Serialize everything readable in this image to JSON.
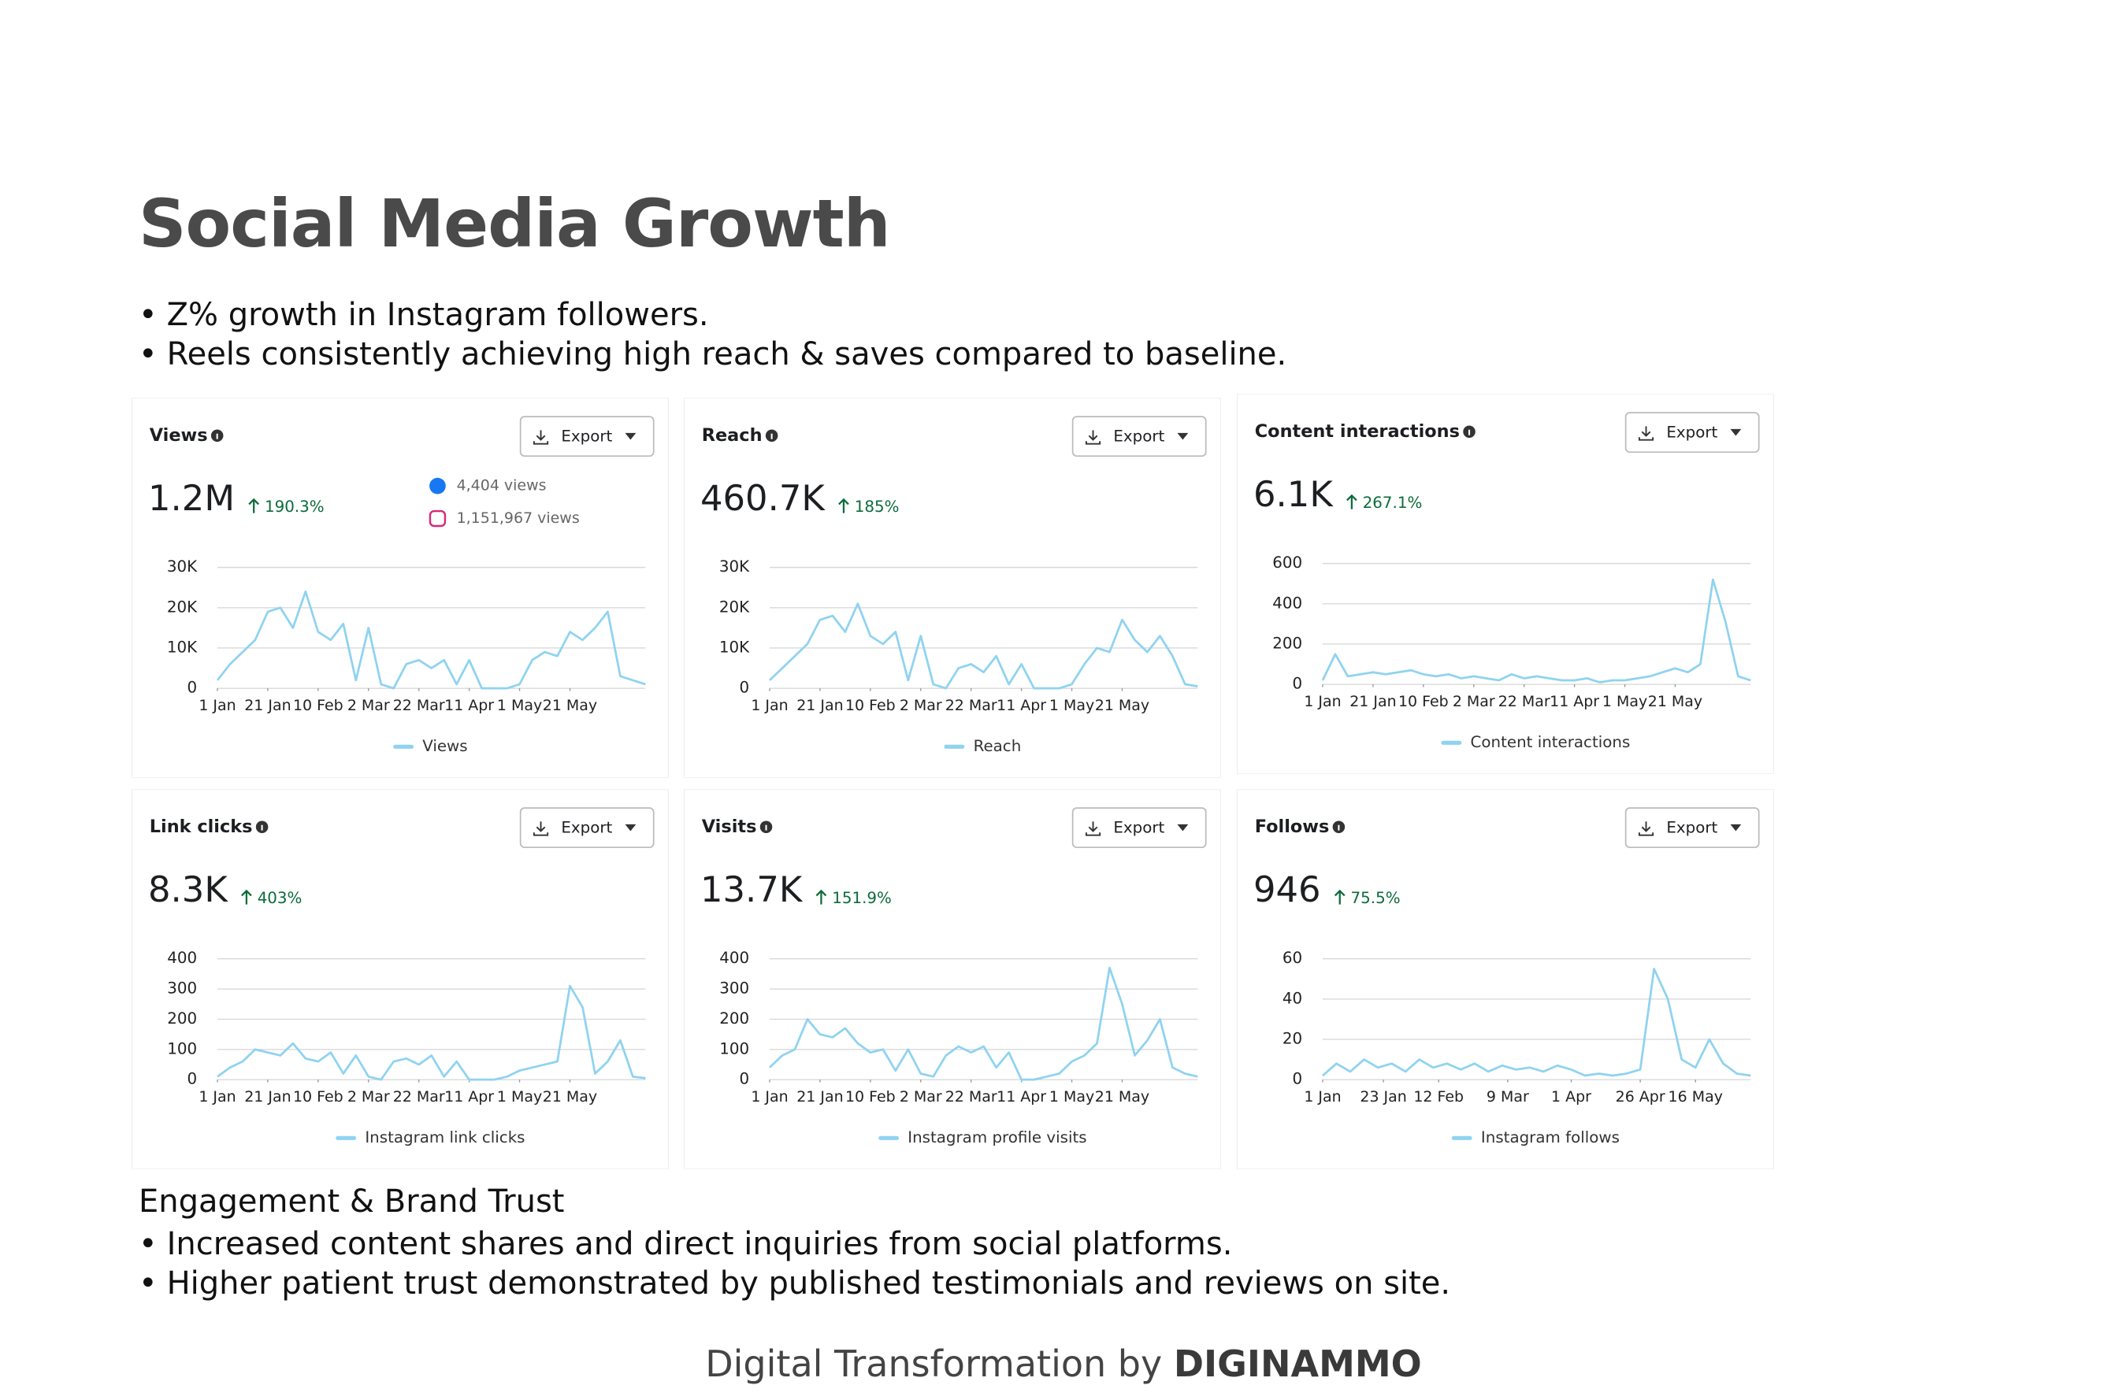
{
  "title": "Social Media Growth",
  "bullets": [
    "Z% growth in Instagram followers.",
    "Reels consistently achieving high reach & saves compared to baseline."
  ],
  "section": {
    "heading": "Engagement & Brand Trust",
    "bullets": [
      "Increased content shares and direct inquiries from social platforms.",
      "Higher patient trust demonstrated by published testimonials and reviews on site."
    ]
  },
  "footer": {
    "text": "Digital Transformation by",
    "brand": "DIGINAMMO"
  },
  "chart_data": [
    {
      "type": "line",
      "title": "Views",
      "button": "Export",
      "total": "1.2M",
      "change": "190.3%",
      "breakdown": [
        "4,404 views",
        "1,151,967 views"
      ],
      "x": [
        0,
        5,
        10,
        15,
        20,
        25,
        30,
        35,
        40,
        45,
        50,
        55,
        60,
        65,
        70,
        75,
        80,
        85,
        90,
        95,
        100,
        105,
        110,
        115,
        120,
        125,
        130,
        135,
        140,
        145,
        150,
        155,
        160,
        165,
        170
      ],
      "xlim": [
        0,
        170
      ],
      "xticks": [
        {
          "value": 0,
          "label": "1 Jan"
        },
        {
          "value": 20,
          "label": "21 Jan"
        },
        {
          "value": 40,
          "label": "10 Feb"
        },
        {
          "value": 60,
          "label": "2 Mar"
        },
        {
          "value": 80,
          "label": "22 Mar"
        },
        {
          "value": 100,
          "label": "11 Apr"
        },
        {
          "value": 120,
          "label": "1 May"
        },
        {
          "value": 140,
          "label": "21 May"
        }
      ],
      "ylim": [
        0,
        30000
      ],
      "yticks": [
        0,
        {
          "value": 10000,
          "label": "10K"
        },
        {
          "value": 20000,
          "label": "20K"
        },
        {
          "value": 30000,
          "label": "30K"
        }
      ],
      "series": [
        {
          "name": "Views",
          "color": "#8fd3f0",
          "values": [
            2000,
            6000,
            9000,
            12000,
            19000,
            20000,
            15000,
            24000,
            14000,
            12000,
            16000,
            2000,
            15000,
            1000,
            0,
            6000,
            7000,
            5000,
            7000,
            1000,
            7000,
            0,
            0,
            0,
            1000,
            7000,
            9000,
            8000,
            14000,
            12000,
            15000,
            19000,
            3000,
            2000,
            1000
          ]
        }
      ]
    },
    {
      "type": "line",
      "title": "Reach",
      "button": "Export",
      "total": "460.7K",
      "change": "185%",
      "x": [
        0,
        5,
        10,
        15,
        20,
        25,
        30,
        35,
        40,
        45,
        50,
        55,
        60,
        65,
        70,
        75,
        80,
        85,
        90,
        95,
        100,
        105,
        110,
        115,
        120,
        125,
        130,
        135,
        140,
        145,
        150,
        155,
        160,
        165,
        170
      ],
      "xlim": [
        0,
        170
      ],
      "xticks": [
        {
          "value": 0,
          "label": "1 Jan"
        },
        {
          "value": 20,
          "label": "21 Jan"
        },
        {
          "value": 40,
          "label": "10 Feb"
        },
        {
          "value": 60,
          "label": "2 Mar"
        },
        {
          "value": 80,
          "label": "22 Mar"
        },
        {
          "value": 100,
          "label": "11 Apr"
        },
        {
          "value": 120,
          "label": "1 May"
        },
        {
          "value": 140,
          "label": "21 May"
        }
      ],
      "ylim": [
        0,
        30000
      ],
      "yticks": [
        0,
        {
          "value": 10000,
          "label": "10K"
        },
        {
          "value": 20000,
          "label": "20K"
        },
        {
          "value": 30000,
          "label": "30K"
        }
      ],
      "series": [
        {
          "name": "Reach",
          "color": "#8fd3f0",
          "values": [
            2000,
            5000,
            8000,
            11000,
            17000,
            18000,
            14000,
            21000,
            13000,
            11000,
            14000,
            2000,
            13000,
            1000,
            0,
            5000,
            6000,
            4000,
            8000,
            1000,
            6000,
            0,
            0,
            0,
            1000,
            6000,
            10000,
            9000,
            17000,
            12000,
            9000,
            13000,
            8000,
            1000,
            500
          ]
        }
      ]
    },
    {
      "type": "line",
      "title": "Content interactions",
      "button": "Export",
      "total": "6.1K",
      "change": "267.1%",
      "x": [
        0,
        5,
        10,
        15,
        20,
        25,
        30,
        35,
        40,
        45,
        50,
        55,
        60,
        65,
        70,
        75,
        80,
        85,
        90,
        95,
        100,
        105,
        110,
        115,
        120,
        125,
        130,
        135,
        140,
        145,
        150,
        155,
        160,
        165,
        170
      ],
      "xlim": [
        0,
        170
      ],
      "xticks": [
        {
          "value": 0,
          "label": "1 Jan"
        },
        {
          "value": 20,
          "label": "21 Jan"
        },
        {
          "value": 40,
          "label": "10 Feb"
        },
        {
          "value": 60,
          "label": "2 Mar"
        },
        {
          "value": 80,
          "label": "22 Mar"
        },
        {
          "value": 100,
          "label": "11 Apr"
        },
        {
          "value": 120,
          "label": "1 May"
        },
        {
          "value": 140,
          "label": "21 May"
        }
      ],
      "ylim": [
        0,
        600
      ],
      "yticks": [
        0,
        200,
        400,
        600
      ],
      "series": [
        {
          "name": "Content interactions",
          "color": "#8fd3f0",
          "values": [
            20,
            150,
            40,
            50,
            60,
            50,
            60,
            70,
            50,
            40,
            50,
            30,
            40,
            30,
            20,
            50,
            30,
            40,
            30,
            20,
            20,
            30,
            10,
            20,
            20,
            30,
            40,
            60,
            80,
            60,
            100,
            520,
            310,
            40,
            20
          ]
        }
      ]
    },
    {
      "type": "line",
      "title": "Link clicks",
      "button": "Export",
      "total": "8.3K",
      "change": "403%",
      "x": [
        0,
        5,
        10,
        15,
        20,
        25,
        30,
        35,
        40,
        45,
        50,
        55,
        60,
        65,
        70,
        75,
        80,
        85,
        90,
        95,
        100,
        105,
        110,
        115,
        120,
        125,
        130,
        135,
        140,
        145,
        150,
        155,
        160,
        165,
        170
      ],
      "xlim": [
        0,
        170
      ],
      "xticks": [
        {
          "value": 0,
          "label": "1 Jan"
        },
        {
          "value": 20,
          "label": "21 Jan"
        },
        {
          "value": 40,
          "label": "10 Feb"
        },
        {
          "value": 60,
          "label": "2 Mar"
        },
        {
          "value": 80,
          "label": "22 Mar"
        },
        {
          "value": 100,
          "label": "11 Apr"
        },
        {
          "value": 120,
          "label": "1 May"
        },
        {
          "value": 140,
          "label": "21 May"
        }
      ],
      "ylim": [
        0,
        400
      ],
      "yticks": [
        0,
        100,
        200,
        300,
        400
      ],
      "series": [
        {
          "name": "Instagram link clicks",
          "color": "#8fd3f0",
          "values": [
            10,
            40,
            60,
            100,
            90,
            80,
            120,
            70,
            60,
            90,
            20,
            80,
            10,
            0,
            60,
            70,
            50,
            80,
            10,
            60,
            0,
            0,
            0,
            10,
            30,
            40,
            50,
            60,
            310,
            240,
            20,
            60,
            130,
            10,
            5
          ]
        }
      ]
    },
    {
      "type": "line",
      "title": "Visits",
      "button": "Export",
      "total": "13.7K",
      "change": "151.9%",
      "x": [
        0,
        5,
        10,
        15,
        20,
        25,
        30,
        35,
        40,
        45,
        50,
        55,
        60,
        65,
        70,
        75,
        80,
        85,
        90,
        95,
        100,
        105,
        110,
        115,
        120,
        125,
        130,
        135,
        140,
        145,
        150,
        155,
        160,
        165,
        170
      ],
      "xlim": [
        0,
        170
      ],
      "xticks": [
        {
          "value": 0,
          "label": "1 Jan"
        },
        {
          "value": 20,
          "label": "21 Jan"
        },
        {
          "value": 40,
          "label": "10 Feb"
        },
        {
          "value": 60,
          "label": "2 Mar"
        },
        {
          "value": 80,
          "label": "22 Mar"
        },
        {
          "value": 100,
          "label": "11 Apr"
        },
        {
          "value": 120,
          "label": "1 May"
        },
        {
          "value": 140,
          "label": "21 May"
        }
      ],
      "ylim": [
        0,
        400
      ],
      "yticks": [
        0,
        100,
        200,
        300,
        400
      ],
      "series": [
        {
          "name": "Instagram profile visits",
          "color": "#8fd3f0",
          "values": [
            40,
            80,
            100,
            200,
            150,
            140,
            170,
            120,
            90,
            100,
            30,
            100,
            20,
            10,
            80,
            110,
            90,
            110,
            40,
            90,
            0,
            0,
            10,
            20,
            60,
            80,
            120,
            370,
            250,
            80,
            130,
            200,
            40,
            20,
            10
          ]
        }
      ]
    },
    {
      "type": "line",
      "title": "Follows",
      "button": "Export",
      "total": "946",
      "change": "75.5%",
      "x": [
        0,
        5,
        10,
        15,
        20,
        25,
        30,
        35,
        40,
        45,
        50,
        55,
        60,
        65,
        70,
        75,
        80,
        85,
        90,
        95,
        100,
        105,
        110,
        115,
        120,
        125,
        130,
        135,
        140,
        145,
        150,
        155
      ],
      "xlim": [
        0,
        155
      ],
      "xticks": [
        {
          "value": 0,
          "label": "1 Jan"
        },
        {
          "value": 22,
          "label": "23 Jan"
        },
        {
          "value": 42,
          "label": "12 Feb"
        },
        {
          "value": 67,
          "label": "9 Mar"
        },
        {
          "value": 90,
          "label": "1 Apr"
        },
        {
          "value": 115,
          "label": "26 Apr"
        },
        {
          "value": 135,
          "label": "16 May"
        }
      ],
      "ylim": [
        0,
        60
      ],
      "yticks": [
        0,
        20,
        40,
        60
      ],
      "series": [
        {
          "name": "Instagram follows",
          "color": "#8fd3f0",
          "values": [
            2,
            8,
            4,
            10,
            6,
            8,
            4,
            10,
            6,
            8,
            5,
            8,
            4,
            7,
            5,
            6,
            4,
            7,
            5,
            2,
            3,
            2,
            3,
            5,
            55,
            40,
            10,
            6,
            20,
            8,
            3,
            2
          ]
        }
      ]
    }
  ]
}
